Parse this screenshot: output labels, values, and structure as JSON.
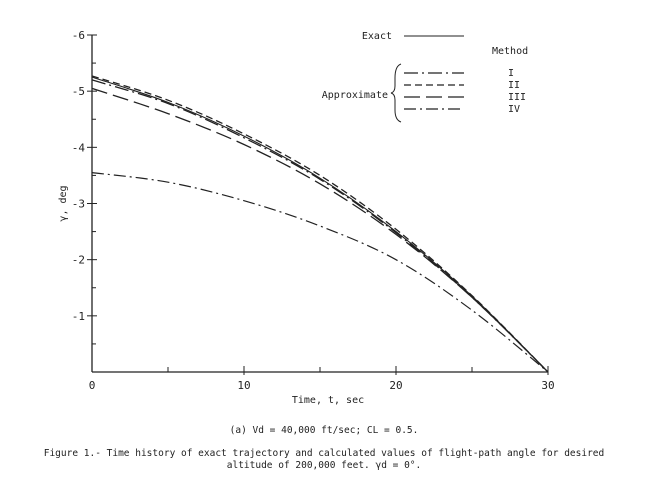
{
  "chart_data": {
    "type": "line",
    "xlabel": "Time, t, sec",
    "ylabel": "γ, deg",
    "xlim": [
      0,
      30
    ],
    "ylim": [
      0,
      -6
    ],
    "x_ticks": [
      "0",
      "10",
      "20",
      "30"
    ],
    "y_ticks": [
      "-1",
      "-2",
      "-3",
      "-4",
      "-5",
      "-6"
    ],
    "grid": false,
    "legend": {
      "placement": "top-right",
      "exact_label": "Exact",
      "approx_label": "Approximate",
      "method_header": "Method"
    },
    "series": [
      {
        "name": "Exact",
        "style": "solid",
        "x": [
          0,
          5,
          10,
          15,
          20,
          25,
          30
        ],
        "y": [
          -5.25,
          -4.8,
          -4.2,
          -3.45,
          -2.5,
          -1.35,
          0
        ]
      },
      {
        "name": "I",
        "style": "longdash-dot",
        "x": [
          0,
          5,
          10,
          15,
          20,
          25,
          30
        ],
        "y": [
          -5.2,
          -4.78,
          -4.17,
          -3.43,
          -2.48,
          -1.33,
          0
        ]
      },
      {
        "name": "II",
        "style": "dashed",
        "x": [
          0,
          5,
          10,
          15,
          20,
          25,
          30
        ],
        "y": [
          -5.27,
          -4.84,
          -4.24,
          -3.5,
          -2.54,
          -1.36,
          0
        ]
      },
      {
        "name": "III",
        "style": "longdash",
        "x": [
          0,
          5,
          10,
          15,
          20,
          25,
          30
        ],
        "y": [
          -5.05,
          -4.6,
          -4.05,
          -3.35,
          -2.45,
          -1.33,
          0
        ]
      },
      {
        "name": "IV",
        "style": "dash-dot",
        "x": [
          0,
          5,
          10,
          15,
          20,
          25,
          30
        ],
        "y": [
          -3.55,
          -3.38,
          -3.05,
          -2.6,
          -2.0,
          -1.1,
          0
        ]
      }
    ]
  },
  "subcaption": "(a) Vd = 40,000 ft/sec; CL = 0.5.",
  "caption_line1": "Figure 1.- Time history of exact trajectory and calculated values of flight-path angle for desired",
  "caption_line2": "altitude of 200,000 feet. γd = 0°."
}
